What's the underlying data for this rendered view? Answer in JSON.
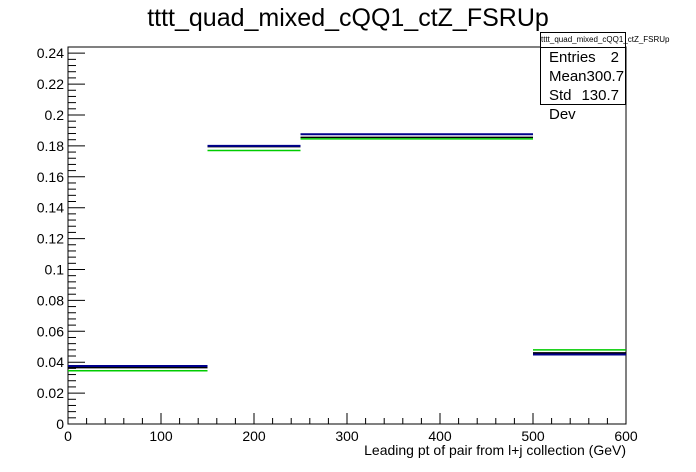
{
  "title": "tttt_quad_mixed_cQQ1_ctZ_FSRUp",
  "stats": {
    "name": "tttt_quad_mixed_cQQ1_ctZ_FSRUp",
    "rows": [
      {
        "label": "Entries",
        "value": "2"
      },
      {
        "label": "Mean",
        "value": "300.7"
      },
      {
        "label": "Std Dev",
        "value": "130.7"
      }
    ]
  },
  "chart_data": {
    "type": "bar",
    "xlabel": "Leading pt of pair from l+j collection (GeV)",
    "ylabel": "",
    "xlim": [
      0,
      600
    ],
    "ylim": [
      0,
      0.244
    ],
    "x_ticks": [
      0,
      100,
      200,
      300,
      400,
      500,
      600
    ],
    "y_ticks": [
      0,
      0.02,
      0.04,
      0.06,
      0.08,
      0.1,
      0.12,
      0.14,
      0.16,
      0.18,
      0.2,
      0.22,
      0.24
    ],
    "bins": [
      [
        0,
        150
      ],
      [
        150,
        250
      ],
      [
        250,
        500
      ],
      [
        500,
        600
      ]
    ],
    "series": [
      {
        "color": "#000000",
        "values": [
          0.0365,
          0.1795,
          0.1855,
          0.046
        ]
      },
      {
        "color": "#00008b",
        "values": [
          0.0375,
          0.18,
          0.1875,
          0.045
        ]
      },
      {
        "color": "#00cc00",
        "values": [
          0.0345,
          0.177,
          0.1845,
          0.048
        ]
      }
    ]
  }
}
